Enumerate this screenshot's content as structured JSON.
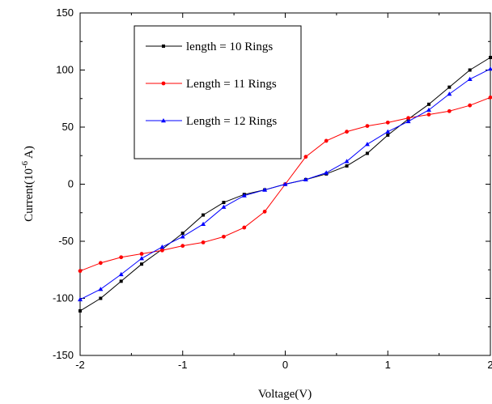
{
  "chart_data": {
    "type": "line",
    "xlabel": "Voltage(V)",
    "ylabel": {
      "prefix": "Current(10",
      "superscript": "-6",
      "suffix": " A)"
    },
    "xlim": [
      -2,
      2
    ],
    "ylim": [
      -150,
      150
    ],
    "x_ticks": [
      -2,
      -1,
      0,
      1,
      2
    ],
    "y_ticks": [
      -150,
      -100,
      -50,
      0,
      50,
      100,
      150
    ],
    "x_tick_labels": [
      "-2",
      "-1",
      "0",
      "1",
      "2"
    ],
    "y_tick_labels": [
      "-150",
      "-100",
      "-50",
      "0",
      "50",
      "100",
      "150"
    ],
    "grid": false,
    "legend_position": "top-left",
    "series": [
      {
        "name": "length = 10 Rings",
        "color": "#000000",
        "marker": "square",
        "x": [
          -2,
          -1.8,
          -1.6,
          -1.4,
          -1.2,
          -1.0,
          -0.8,
          -0.6,
          -0.4,
          -0.2,
          0,
          0.2,
          0.4,
          0.6,
          0.8,
          1.0,
          1.2,
          1.4,
          1.6,
          1.8,
          2.0
        ],
        "y": [
          -111,
          -100,
          -85,
          -70,
          -57,
          -43,
          -27,
          -16,
          -9,
          -5,
          0,
          4,
          9,
          16,
          27,
          43,
          57,
          70,
          85,
          100,
          111
        ]
      },
      {
        "name": "Length = 11 Rings",
        "color": "#ff0000",
        "marker": "circle",
        "x": [
          -2,
          -1.8,
          -1.6,
          -1.4,
          -1.2,
          -1.0,
          -0.8,
          -0.6,
          -0.4,
          -0.2,
          0,
          0.2,
          0.4,
          0.6,
          0.8,
          1.0,
          1.2,
          1.4,
          1.6,
          1.8,
          2.0
        ],
        "y": [
          -76,
          -69,
          -64,
          -61,
          -58,
          -54,
          -51,
          -46,
          -38,
          -24,
          0,
          24,
          38,
          46,
          51,
          54,
          58,
          61,
          64,
          69,
          76
        ]
      },
      {
        "name": "Length = 12 Rings",
        "color": "#0000ff",
        "marker": "triangle",
        "x": [
          -2,
          -1.8,
          -1.6,
          -1.4,
          -1.2,
          -1.0,
          -0.8,
          -0.6,
          -0.4,
          -0.2,
          0,
          0.2,
          0.4,
          0.6,
          0.8,
          1.0,
          1.2,
          1.4,
          1.6,
          1.8,
          2.0
        ],
        "y": [
          -101,
          -92,
          -79,
          -65,
          -55,
          -46,
          -35,
          -20,
          -10,
          -5,
          0,
          4,
          10,
          20,
          35,
          46,
          55,
          65,
          79,
          92,
          101
        ]
      }
    ]
  }
}
